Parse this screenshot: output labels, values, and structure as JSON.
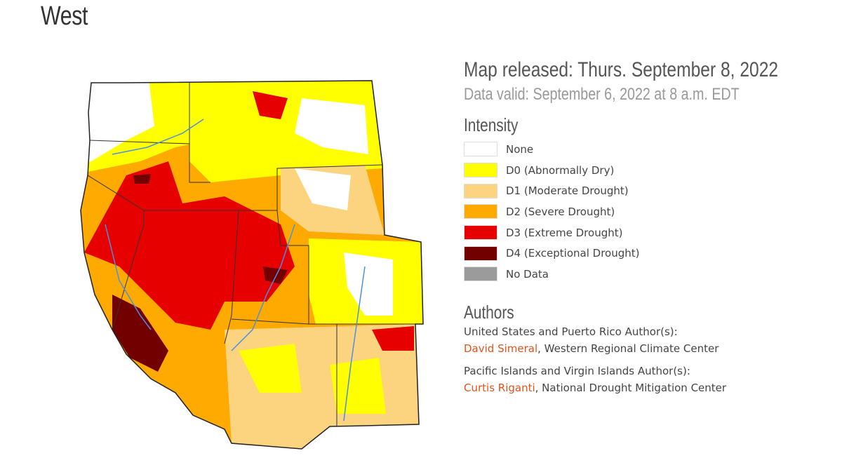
{
  "page_title": "West",
  "map_released": "Map released: Thurs. September 8, 2022",
  "data_valid": "Data valid: September 6, 2022 at 8 a.m. EDT",
  "intensity": {
    "heading": "Intensity",
    "items": [
      {
        "label": "None",
        "color": "#ffffff"
      },
      {
        "label": "D0 (Abnormally Dry)",
        "color": "#ffff00"
      },
      {
        "label": "D1 (Moderate Drought)",
        "color": "#fcd37f"
      },
      {
        "label": "D2 (Severe Drought)",
        "color": "#ffaa00"
      },
      {
        "label": "D3 (Extreme Drought)",
        "color": "#e60000"
      },
      {
        "label": "D4 (Exceptional Drought)",
        "color": "#730000"
      },
      {
        "label": "No Data",
        "color": "#9b9b9b"
      }
    ]
  },
  "authors": {
    "heading": "Authors",
    "groups": [
      {
        "title": "United States and Puerto Rico Author(s):",
        "name": "David Simeral",
        "org": ", Western Regional Climate Center"
      },
      {
        "title": "Pacific Islands and Virgin Islands Author(s):",
        "name": "Curtis Riganti",
        "org": ", National Drought Mitigation Center"
      }
    ]
  },
  "colors": {
    "link": "#e0541b"
  }
}
